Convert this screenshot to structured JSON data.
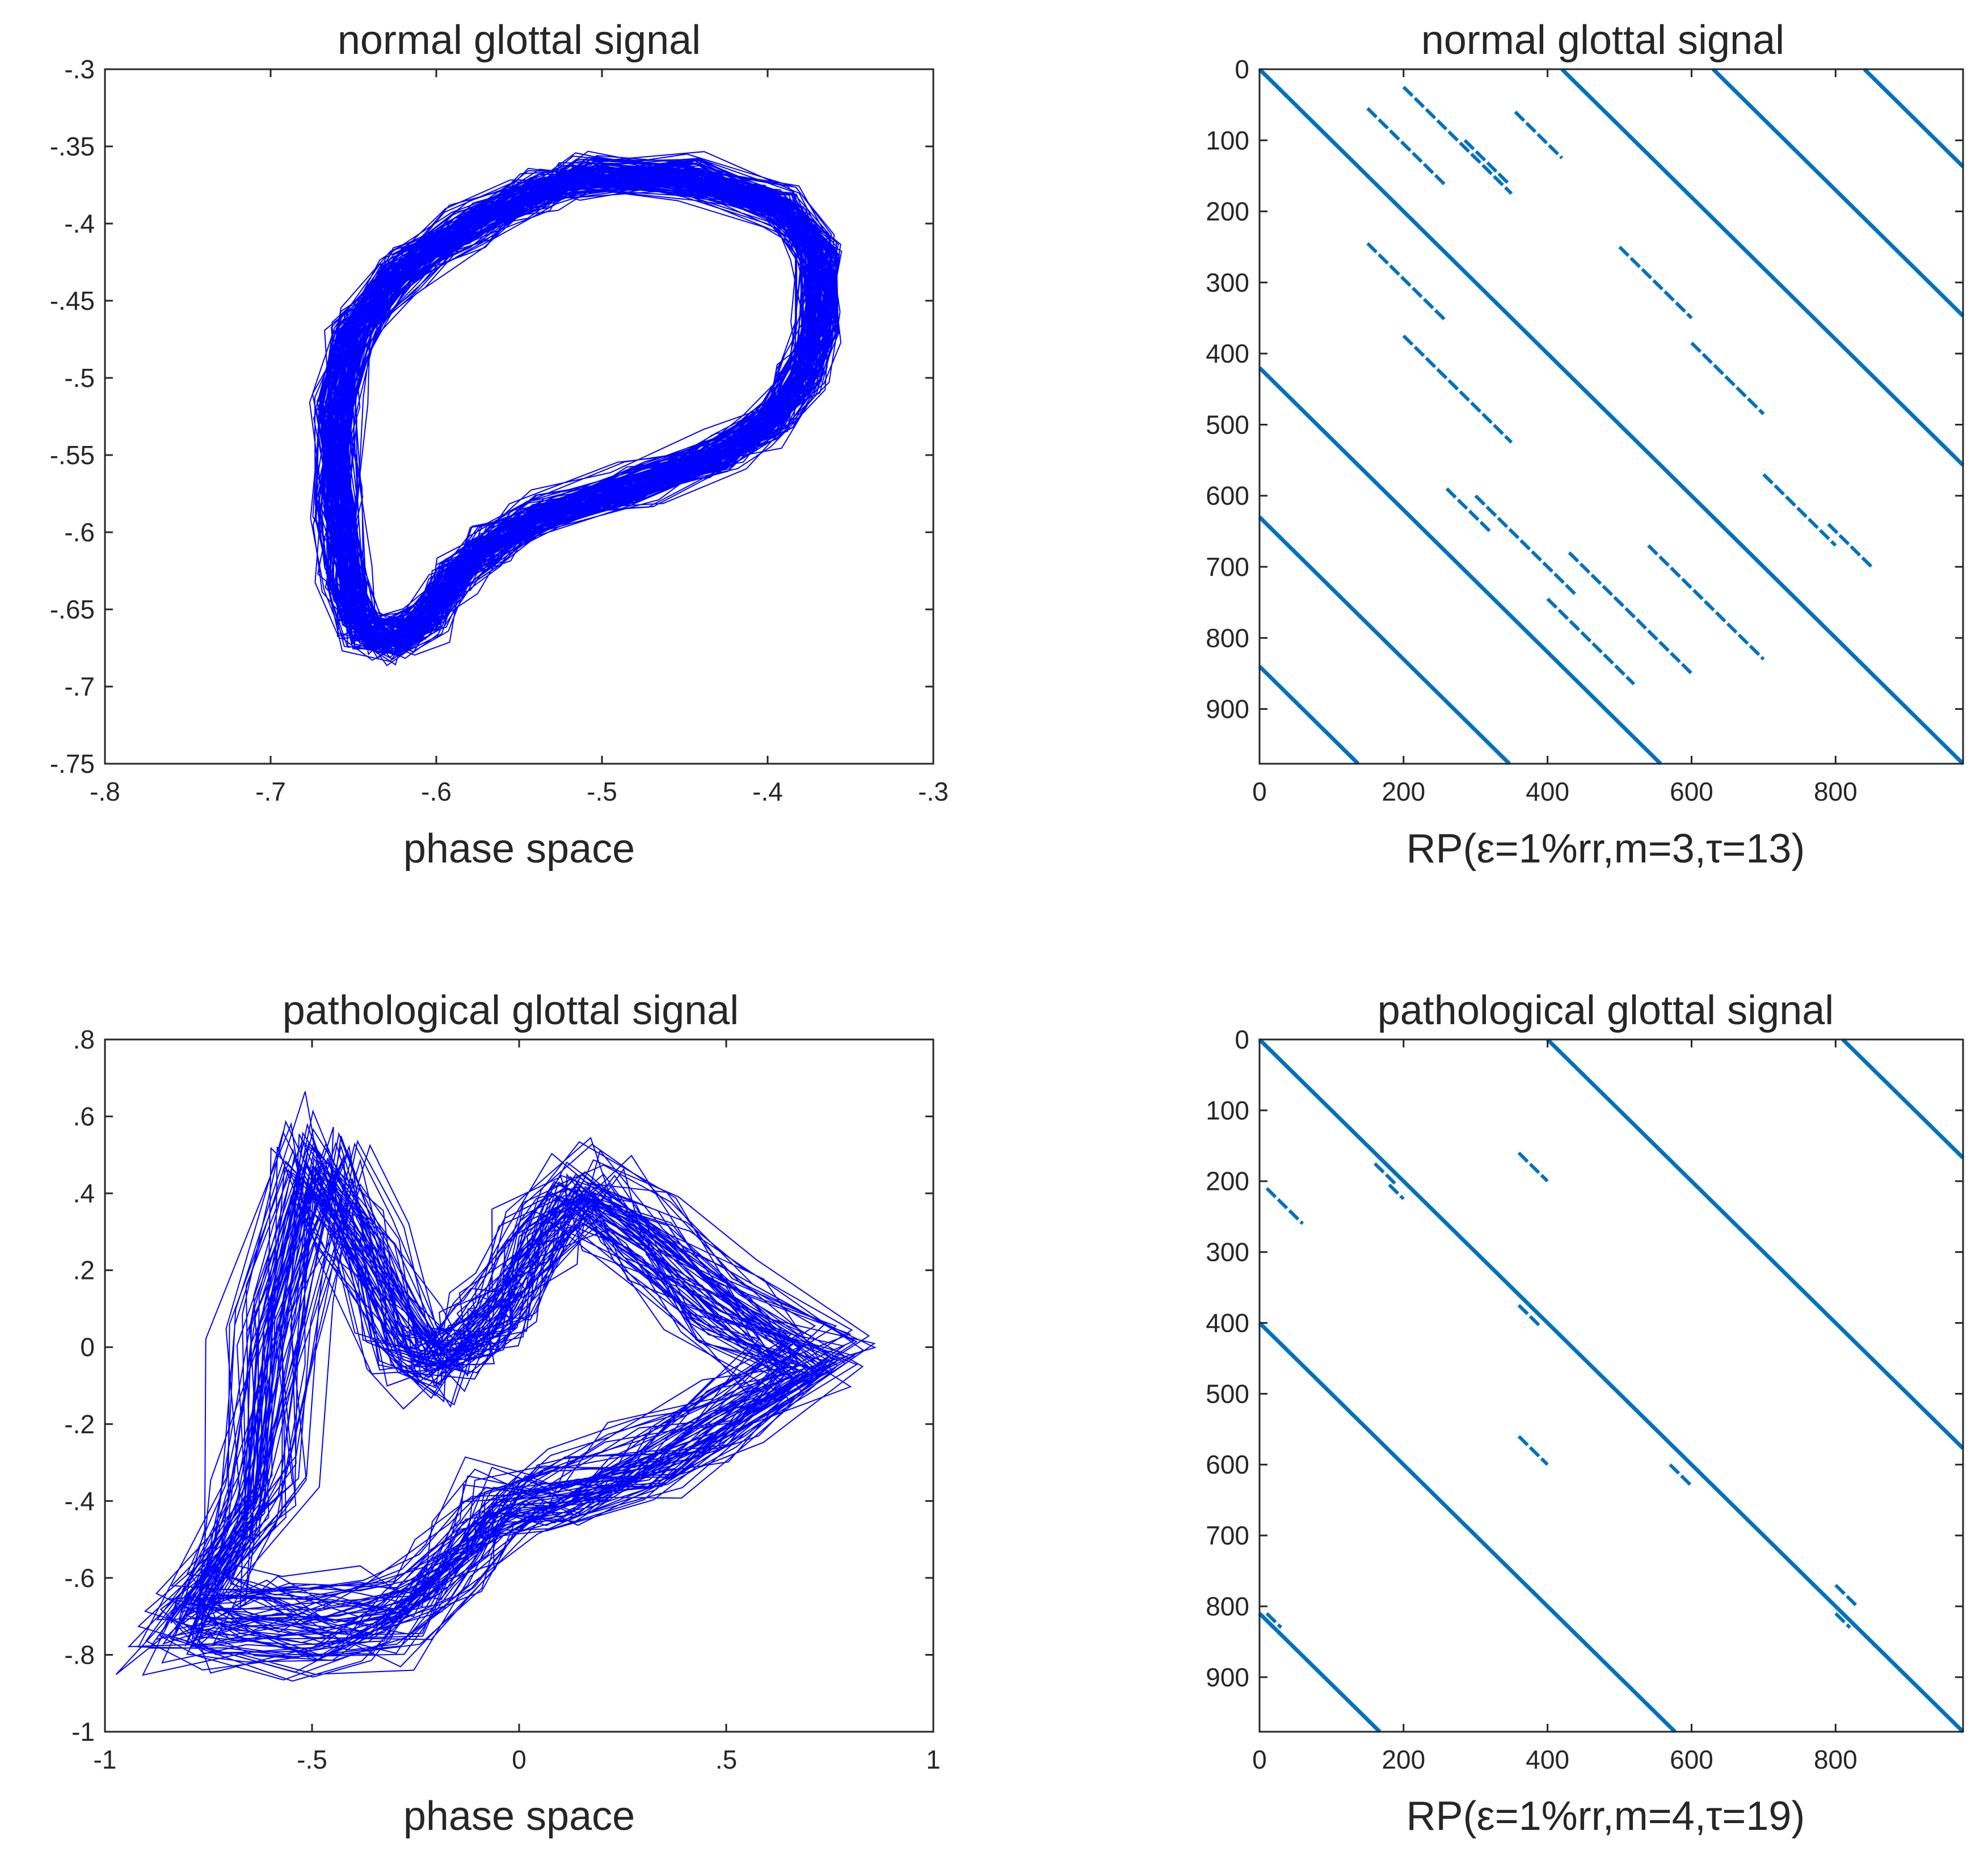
{
  "figure": {
    "panels": [
      {
        "id": "normal-phase",
        "title": "normal glottal signal",
        "xlabel": "phase space"
      },
      {
        "id": "normal-rp",
        "title": "normal glottal signal",
        "xlabel": "RP(ε=1%rr,m=3,τ=13)"
      },
      {
        "id": "patho-phase",
        "title": "pathological glottal  signal",
        "xlabel": "phase space"
      },
      {
        "id": "patho-rp",
        "title": "pathological glottal signal",
        "xlabel": "RP(ε=1%rr,m=4,τ=19)"
      }
    ]
  },
  "chart_data": [
    {
      "type": "line",
      "title": "normal glottal signal",
      "xlabel": "phase space",
      "ylabel": "",
      "xlim": [
        -0.8,
        -0.3
      ],
      "ylim": [
        -0.75,
        -0.3
      ],
      "xticks": [
        -0.8,
        -0.7,
        -0.6,
        -0.5,
        -0.4,
        -0.3
      ],
      "yticks": [
        -0.3,
        -0.35,
        -0.4,
        -0.45,
        -0.5,
        -0.55,
        -0.6,
        -0.65,
        -0.7,
        -0.75
      ],
      "color": "#0000ff",
      "grid": false,
      "trajectory": {
        "loop": [
          [
            -0.51,
            -0.37
          ],
          [
            -0.45,
            -0.37
          ],
          [
            -0.39,
            -0.39
          ],
          [
            -0.37,
            -0.42
          ],
          [
            -0.37,
            -0.47
          ],
          [
            -0.38,
            -0.5
          ],
          [
            -0.4,
            -0.53
          ],
          [
            -0.43,
            -0.55
          ],
          [
            -0.48,
            -0.57
          ],
          [
            -0.54,
            -0.59
          ],
          [
            -0.57,
            -0.61
          ],
          [
            -0.59,
            -0.63
          ],
          [
            -0.605,
            -0.655
          ],
          [
            -0.625,
            -0.67
          ],
          [
            -0.645,
            -0.665
          ],
          [
            -0.655,
            -0.63
          ],
          [
            -0.66,
            -0.58
          ],
          [
            -0.66,
            -0.52
          ],
          [
            -0.65,
            -0.47
          ],
          [
            -0.62,
            -0.43
          ],
          [
            -0.58,
            -0.4
          ],
          [
            -0.54,
            -0.38
          ]
        ],
        "x_amplitude": 0.05,
        "y_amplitude": 0.05,
        "cycles": 140
      }
    },
    {
      "type": "scatter",
      "title": "normal glottal signal",
      "xlabel": "RP(ε=1%rr,m=3,τ=13)",
      "ylabel": "",
      "xlim": [
        0,
        977
      ],
      "ylim": [
        977,
        0
      ],
      "xticks": [
        0,
        200,
        400,
        600,
        800
      ],
      "yticks": [
        0,
        100,
        200,
        300,
        400,
        500,
        600,
        700,
        800,
        900
      ],
      "color": "#0072bd",
      "grid": false,
      "recurrence": {
        "size": 977,
        "main_diagonal_offsets": [
          -840,
          -630,
          -420,
          0,
          420,
          630,
          840
        ],
        "segments": [
          [
            60,
            35,
            110
          ],
          [
            95,
            150,
            260
          ],
          [
            175,
            200,
            350
          ],
          [
            185,
            285,
            345
          ],
          [
            300,
            120,
            260
          ],
          [
            295,
            355,
            420
          ],
          [
            330,
            225,
            315
          ],
          [
            345,
            200,
            420
          ],
          [
            365,
            270,
            440
          ],
          [
            520,
            160,
            250
          ],
          [
            505,
            60,
            160
          ],
          [
            545,
            350,
            440
          ],
          [
            -95,
            150,
            260
          ],
          [
            -175,
            200,
            350
          ],
          [
            -300,
            300,
            440
          ],
          [
            -330,
            260,
            320
          ],
          [
            -345,
            400,
            520
          ],
          [
            -520,
            520,
            620
          ],
          [
            -505,
            640,
            760
          ],
          [
            -545,
            790,
            880
          ],
          [
            130,
            700,
            800
          ],
          [
            150,
            790,
            850
          ],
          [
            -130,
            540,
            700
          ],
          [
            -150,
            700,
            830
          ],
          [
            250,
            500,
            600
          ],
          [
            -250,
            430,
            600
          ],
          [
            215,
            600,
            700
          ],
          [
            -215,
            740,
            860
          ],
          [
            720,
            10,
            120
          ],
          [
            -720,
            850,
            960
          ],
          [
            780,
            60,
            200
          ],
          [
            -780,
            700,
            960
          ],
          [
            115,
            40,
            90
          ],
          [
            -115,
            850,
            950
          ],
          [
            460,
            10,
            60
          ],
          [
            -460,
            780,
            860
          ]
        ]
      }
    },
    {
      "type": "line",
      "title": "pathological glottal  signal",
      "xlabel": "phase space",
      "ylabel": "",
      "xlim": [
        -1,
        1
      ],
      "ylim": [
        -1,
        0.8
      ],
      "xticks": [
        -1,
        -0.5,
        0,
        0.5,
        1
      ],
      "yticks": [
        0.8,
        0.6,
        0.4,
        0.2,
        0,
        -0.2,
        -0.4,
        -0.6,
        -0.8,
        -1
      ],
      "color": "#0000ff",
      "grid": false,
      "trajectory": {
        "loop": [
          [
            -0.82,
            -0.71
          ],
          [
            -0.7,
            -0.72
          ],
          [
            -0.5,
            -0.74
          ],
          [
            -0.3,
            -0.7
          ],
          [
            -0.15,
            -0.55
          ],
          [
            -0.05,
            -0.42
          ],
          [
            0.1,
            -0.38
          ],
          [
            0.3,
            -0.3
          ],
          [
            0.5,
            -0.2
          ],
          [
            0.72,
            -0.04
          ],
          [
            0.5,
            0.12
          ],
          [
            0.3,
            0.3
          ],
          [
            0.15,
            0.42
          ],
          [
            0.05,
            0.3
          ],
          [
            -0.05,
            0.1
          ],
          [
            -0.1,
            0.05
          ],
          [
            -0.2,
            -0.05
          ],
          [
            -0.28,
            0.02
          ],
          [
            -0.4,
            0.3
          ],
          [
            -0.5,
            0.5
          ],
          [
            -0.6,
            0.05
          ],
          [
            -0.65,
            -0.4
          ]
        ],
        "x_amplitude": 0.35,
        "y_amplitude": 0.35,
        "cycles": 70
      }
    },
    {
      "type": "scatter",
      "title": "pathological glottal signal",
      "xlabel": "RP(ε=1%rr,m=4,τ=19)",
      "ylabel": "",
      "xlim": [
        0,
        977
      ],
      "ylim": [
        977,
        0
      ],
      "xticks": [
        0,
        200,
        400,
        600,
        800
      ],
      "yticks": [
        0,
        100,
        200,
        300,
        400,
        500,
        600,
        700,
        800,
        900
      ],
      "color": "#0072bd",
      "grid": false,
      "recurrence": {
        "size": 977,
        "main_diagonal_offsets": [
          -810,
          -400,
          0,
          400,
          810
        ],
        "segments": [
          [
            -200,
            10,
            60
          ],
          [
            -170,
            830,
            900
          ],
          [
            200,
            360,
            400
          ],
          [
            -200,
            360,
            400
          ],
          [
            -25,
            180,
            200
          ],
          [
            -30,
            570,
            600
          ],
          [
            -10,
            800,
            820
          ],
          [
            30,
            800,
            830
          ],
          [
            -15,
            360,
            390
          ],
          [
            -15,
            160,
            190
          ],
          [
            200,
            160,
            190
          ],
          [
            -200,
            760,
            800
          ],
          [
            380,
            10,
            40
          ],
          [
            -380,
            920,
            960
          ],
          [
            -600,
            700,
            740
          ],
          [
            600,
            60,
            100
          ],
          [
            -400,
            730,
            760
          ],
          [
            -790,
            840,
            860
          ],
          [
            800,
            120,
            140
          ],
          [
            -800,
            10,
            30
          ]
        ]
      }
    }
  ]
}
